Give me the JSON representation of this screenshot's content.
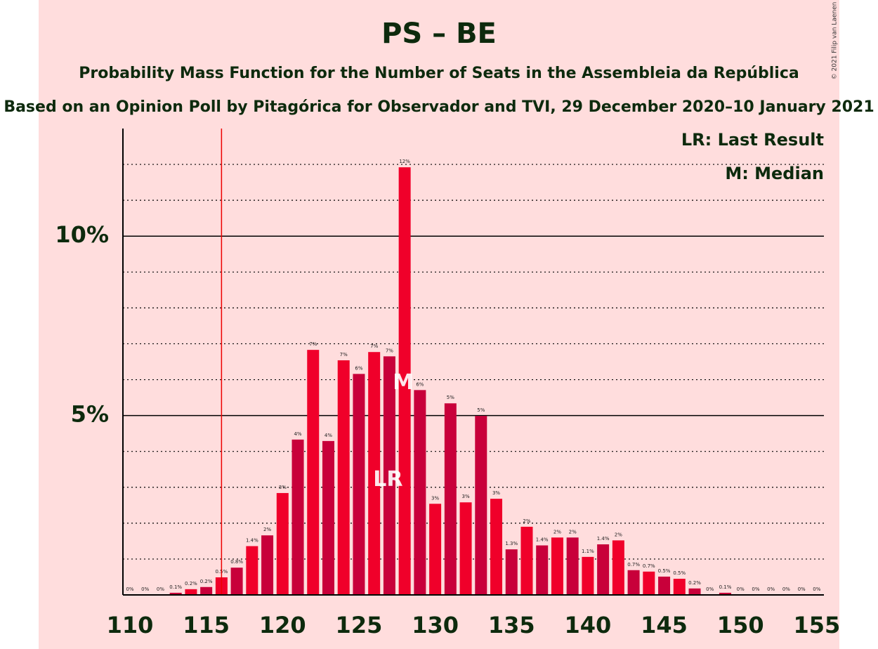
{
  "chart_data": {
    "type": "bar",
    "title": "PS – BE",
    "subtitle": "Probability Mass Function for the Number of Seats in the Assembleia da República",
    "subtitle2": "Based on an Opinion Poll by Pitagórica for Observador and TVI, 29 December 2020–10 January 2021",
    "copyright": "© 2021 Filip van Laenen",
    "legend": [
      "LR: Last Result",
      "M: Median"
    ],
    "categories": [
      110,
      111,
      112,
      113,
      114,
      115,
      116,
      117,
      118,
      119,
      120,
      121,
      122,
      123,
      124,
      125,
      126,
      127,
      128,
      129,
      130,
      131,
      132,
      133,
      134,
      135,
      136,
      137,
      138,
      139,
      140,
      141,
      142,
      143,
      144,
      145,
      146,
      147,
      148,
      149,
      150,
      151,
      152,
      153,
      154,
      155
    ],
    "values": [
      0,
      0,
      0,
      0.06,
      0.16,
      0.22,
      0.49,
      0.76,
      1.36,
      1.66,
      2.84,
      4.33,
      6.83,
      4.29,
      6.54,
      6.16,
      6.77,
      6.65,
      11.92,
      5.71,
      2.54,
      5.34,
      2.58,
      4.99,
      2.68,
      1.27,
      1.9,
      1.38,
      1.6,
      1.6,
      1.06,
      1.41,
      1.52,
      0.69,
      0.65,
      0.51,
      0.45,
      0.18,
      0,
      0.06,
      0,
      0,
      0,
      0,
      0,
      0
    ],
    "value_labels": [
      "0%",
      "0%",
      "0%",
      "0.1%",
      "0.2%",
      "0.2%",
      "0.5%",
      "0.8%",
      "1.4%",
      "2%",
      "3%",
      "4%",
      "7%",
      "4%",
      "7%",
      "6%",
      "7%",
      "7%",
      "12%",
      "6%",
      "3%",
      "5%",
      "3%",
      "5%",
      "3%",
      "1.3%",
      "2%",
      "1.4%",
      "2%",
      "2%",
      "1.1%",
      "1.4%",
      "2%",
      "0.7%",
      "0.7%",
      "0.5%",
      "0.5%",
      "0.2%",
      "0%",
      "0.1%",
      "0%",
      "0%",
      "0%",
      "0%",
      "0%",
      "0%"
    ],
    "colors": [
      "#f0002a",
      "#c8003a"
    ],
    "ylim": [
      0,
      13
    ],
    "yticks": [
      {
        "value": 5,
        "label": "5%"
      },
      {
        "value": 10,
        "label": "10%"
      }
    ],
    "minor_yticks": [
      1,
      2,
      3,
      4,
      6,
      7,
      8,
      9,
      11,
      12
    ],
    "xticks": [
      110,
      115,
      120,
      125,
      130,
      135,
      140,
      145,
      150,
      155
    ],
    "majority_line": 116,
    "annotations": [
      {
        "text": "LR",
        "category": 127
      },
      {
        "text": "M",
        "category": 128
      }
    ]
  }
}
